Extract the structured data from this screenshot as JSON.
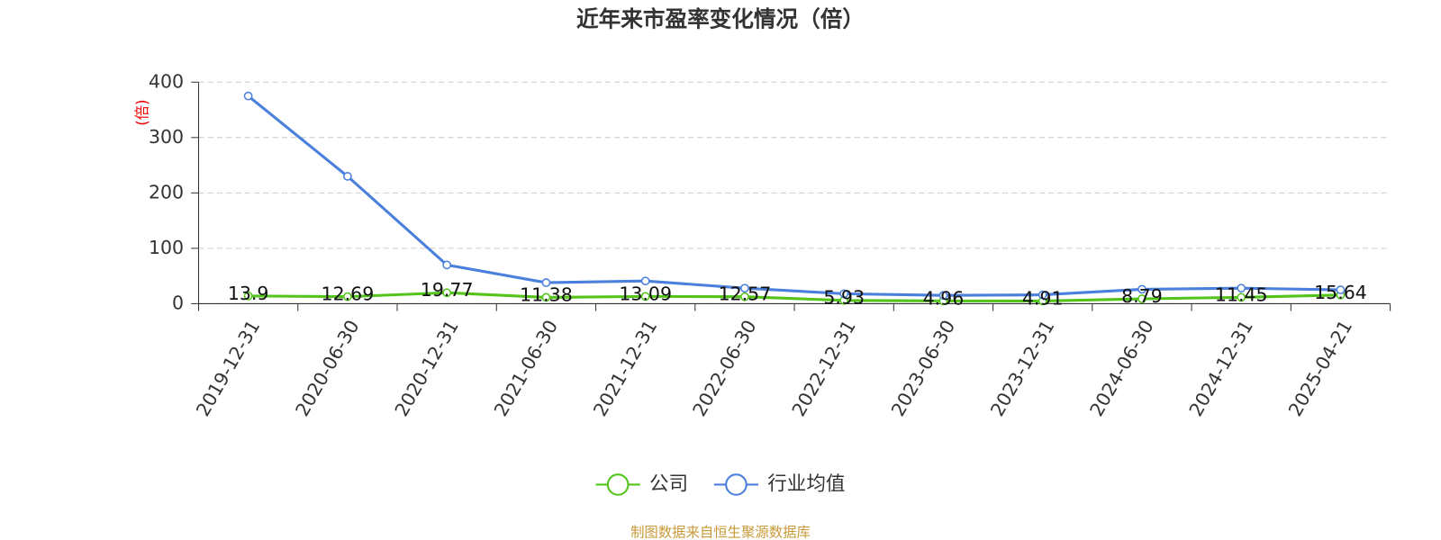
{
  "chart_data": {
    "type": "line",
    "title": "近年来市盈率变化情况（倍）",
    "y_label": "(倍)",
    "categories": [
      "2019-12-31",
      "2020-06-30",
      "2020-12-31",
      "2021-06-30",
      "2021-12-31",
      "2022-06-30",
      "2022-12-31",
      "2023-06-30",
      "2023-12-31",
      "2024-06-30",
      "2024-12-31",
      "2025-04-21"
    ],
    "series": [
      {
        "name": "公司",
        "color": "#52c41a",
        "values": [
          13.9,
          12.69,
          19.77,
          11.38,
          13.09,
          12.57,
          5.93,
          4.96,
          4.91,
          8.79,
          11.45,
          15.64
        ]
      },
      {
        "name": "行业均值",
        "color": "#4a7fdc",
        "values": [
          375,
          230,
          70,
          38,
          41,
          28,
          18,
          15,
          16,
          26,
          28,
          25
        ]
      }
    ],
    "ylim": [
      0,
      400
    ],
    "yticks": [
      0,
      100,
      200,
      300,
      400
    ],
    "grid": true,
    "source": "制图数据来自恒生聚源数据库"
  }
}
